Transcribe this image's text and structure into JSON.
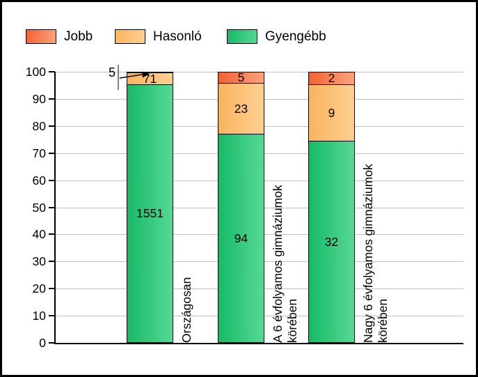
{
  "window": {
    "background": "#ffffff",
    "border_color": "#000000"
  },
  "legend": {
    "items": [
      {
        "label": "Jobb",
        "color_from": "#f26132",
        "color_to": "#fba47e"
      },
      {
        "label": "Hasonló",
        "color_from": "#fab35e",
        "color_to": "#fdd092"
      },
      {
        "label": "Gyengébb",
        "color_from": "#17b966",
        "color_to": "#57d896"
      }
    ]
  },
  "chart_data": {
    "type": "bar",
    "stacked": true,
    "normalized": "each bar scaled to 100%",
    "categories": [
      "Országosan",
      "A 6 évfolyamos gimnáziumok\nkörében",
      "Nagy 6 évfolyamos gimnáziumok\nkörében"
    ],
    "series": [
      {
        "name": "Jobb",
        "values": [
          5,
          5,
          2
        ],
        "color_from": "#f26132",
        "color_to": "#fba47e"
      },
      {
        "name": "Hasonló",
        "values": [
          71,
          23,
          9
        ],
        "color_from": "#fab35e",
        "color_to": "#fdd092"
      },
      {
        "name": "Gyengébb",
        "values": [
          1551,
          94,
          32
        ],
        "color_from": "#17b966",
        "color_to": "#57d896"
      }
    ],
    "xlabel": "",
    "ylabel": "",
    "ylim": [
      0,
      100
    ],
    "yticks": [
      0,
      10,
      20,
      30,
      40,
      50,
      60,
      70,
      80,
      90,
      100
    ],
    "grid": "horizontal, light gray",
    "legend_position": "top",
    "annotation": {
      "value": "5",
      "note": "callout with arrow pointing to the thin Jobb segment of the Országosan bar"
    }
  }
}
